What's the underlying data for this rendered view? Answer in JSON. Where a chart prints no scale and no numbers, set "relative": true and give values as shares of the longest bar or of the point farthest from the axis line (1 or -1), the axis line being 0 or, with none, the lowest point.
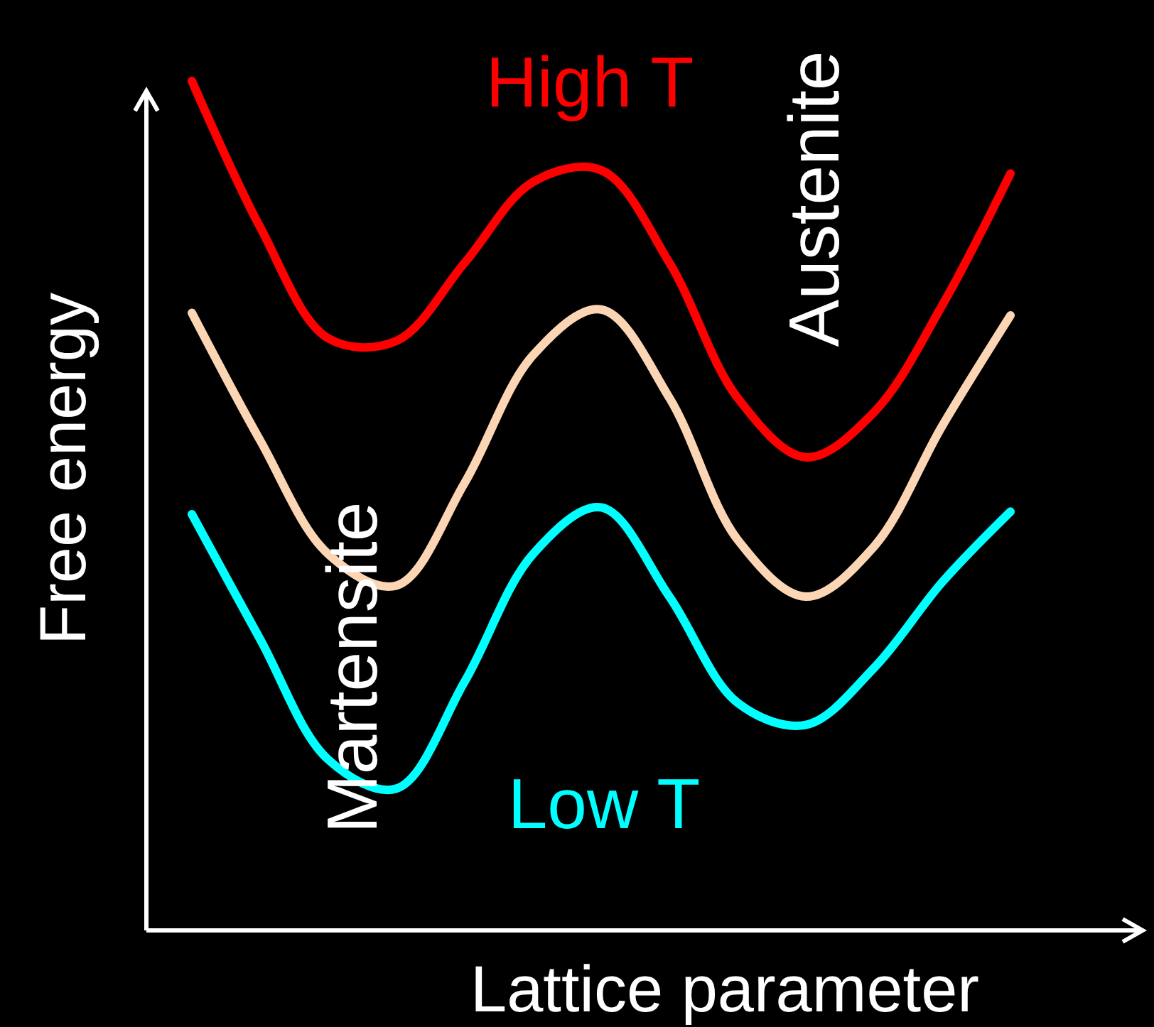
{
  "chart_data": {
    "type": "line",
    "relative": true,
    "xlabel": "Lattice parameter",
    "ylabel": "Free energy",
    "categories": [
      null,
      null,
      null,
      null,
      null,
      null,
      null,
      null,
      null,
      null,
      null,
      null,
      null
    ],
    "series": [
      {
        "name": "High T",
        "color": "#ff0000",
        "values": [
          1,
          0.828,
          0.697,
          0.694,
          0.786,
          0.881,
          0.895,
          0.786,
          0.627,
          0.557,
          0.61,
          0.736,
          0.891
        ]
      },
      {
        "color": "#fcd5b5",
        "values": [
          0.727,
          0.577,
          0.443,
          0.406,
          0.527,
          0.677,
          0.731,
          0.627,
          0.46,
          0.393,
          0.452,
          0.594,
          0.724
        ]
      },
      {
        "name": "Low T",
        "color": "#00ffff",
        "values": [
          0.49,
          0.343,
          0.201,
          0.167,
          0.293,
          0.443,
          0.498,
          0.393,
          0.268,
          0.242,
          0.309,
          0.41,
          0.493
        ]
      }
    ],
    "annotations": [
      "Martensite",
      "Austenite"
    ]
  }
}
